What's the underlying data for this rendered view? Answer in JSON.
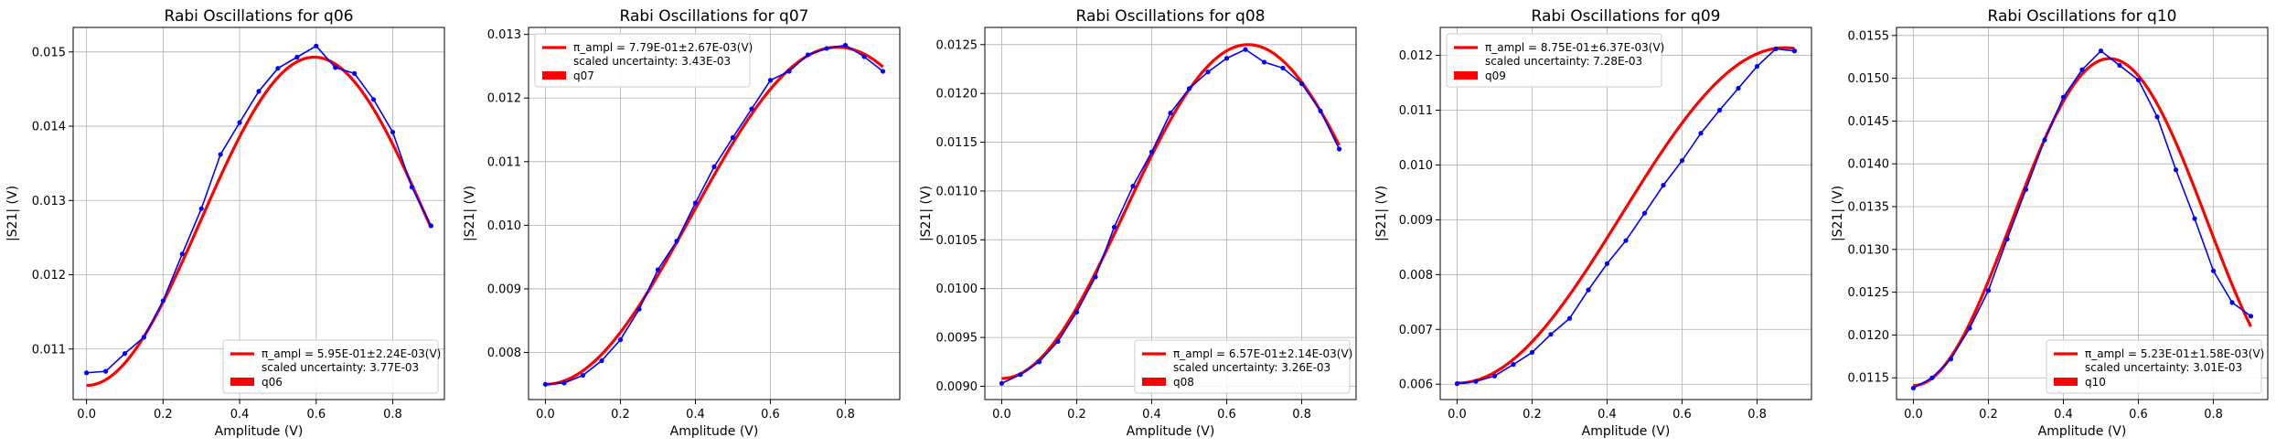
{
  "chart_data": [
    {
      "type": "line",
      "title": "Rabi Oscillations for q06",
      "xlabel": "Amplitude (V)",
      "ylabel": "|S21| (V)",
      "xlim": [
        -0.035,
        0.935
      ],
      "ylim": [
        0.01032,
        0.01533
      ],
      "xticks": [
        "0.0",
        "0.2",
        "0.4",
        "0.6",
        "0.8"
      ],
      "xtick_values": [
        0.0,
        0.2,
        0.4,
        0.6,
        0.8
      ],
      "yticks": [
        "0.011",
        "0.012",
        "0.013",
        "0.014",
        "0.015"
      ],
      "ytick_values": [
        0.011,
        0.012,
        0.013,
        0.014,
        0.015
      ],
      "grid": true,
      "legend_position": "lower-right",
      "legend": {
        "fit_label": "π_ampl = 5.95E-01±2.24E-03(V)",
        "uncertainty_label": "scaled uncertainty: 3.77E-03",
        "data_label": "q06"
      },
      "fit": {
        "center": 0.595,
        "offset": 0.01272,
        "amplitude": 0.00221,
        "period": 1.19
      },
      "series": [
        {
          "name": "q06",
          "color": "#0000ff",
          "x": [
            0.0,
            0.05,
            0.1,
            0.15,
            0.2,
            0.25,
            0.3,
            0.35,
            0.4,
            0.45,
            0.5,
            0.55,
            0.6,
            0.65,
            0.7,
            0.75,
            0.8,
            0.85,
            0.9
          ],
          "y": [
            0.01068,
            0.0107,
            0.01094,
            0.01116,
            0.01165,
            0.01228,
            0.01289,
            0.01362,
            0.01405,
            0.01447,
            0.01478,
            0.01493,
            0.01508,
            0.01479,
            0.01471,
            0.01436,
            0.01392,
            0.01318,
            0.01266
          ]
        }
      ]
    },
    {
      "type": "line",
      "title": "Rabi Oscillations for q07",
      "xlabel": "Amplitude (V)",
      "ylabel": "|S21| (V)",
      "xlim": [
        -0.045,
        0.945
      ],
      "ylim": [
        0.00726,
        0.01311
      ],
      "xticks": [
        "0.0",
        "0.2",
        "0.4",
        "0.6",
        "0.8"
      ],
      "xtick_values": [
        0.0,
        0.2,
        0.4,
        0.6,
        0.8
      ],
      "yticks": [
        "0.008",
        "0.009",
        "0.010",
        "0.011",
        "0.012",
        "0.013"
      ],
      "ytick_values": [
        0.008,
        0.009,
        0.01,
        0.011,
        0.012,
        0.013
      ],
      "grid": true,
      "legend_position": "upper-left",
      "legend": {
        "fit_label": "π_ampl = 7.79E-01±2.67E-03(V)",
        "uncertainty_label": "scaled uncertainty: 3.43E-03",
        "data_label": "q07"
      },
      "fit": {
        "center": 0.779,
        "offset": 0.01015,
        "amplitude": 0.00265,
        "period": 1.558
      },
      "series": [
        {
          "name": "q07",
          "color": "#0000ff",
          "x": [
            0.0,
            0.05,
            0.1,
            0.15,
            0.2,
            0.25,
            0.3,
            0.35,
            0.4,
            0.45,
            0.5,
            0.55,
            0.6,
            0.65,
            0.7,
            0.75,
            0.8,
            0.85,
            0.9
          ],
          "y": [
            0.0075,
            0.00752,
            0.00764,
            0.00787,
            0.0082,
            0.00868,
            0.0093,
            0.00975,
            0.01035,
            0.01092,
            0.01138,
            0.01183,
            0.01228,
            0.01242,
            0.01268,
            0.01278,
            0.01283,
            0.01265,
            0.01242
          ]
        }
      ]
    },
    {
      "type": "line",
      "title": "Rabi Oscillations for q08",
      "xlabel": "Amplitude (V)",
      "ylabel": "|S21| (V)",
      "xlim": [
        -0.045,
        0.945
      ],
      "ylim": [
        0.008864,
        0.012676
      ],
      "xticks": [
        "0.0",
        "0.2",
        "0.4",
        "0.6",
        "0.8"
      ],
      "xtick_values": [
        0.0,
        0.2,
        0.4,
        0.6,
        0.8
      ],
      "yticks": [
        "0.0090",
        "0.0095",
        "0.0100",
        "0.0105",
        "0.0110",
        "0.0115",
        "0.0120",
        "0.0125"
      ],
      "ytick_values": [
        0.009,
        0.0095,
        0.01,
        0.0105,
        0.011,
        0.0115,
        0.012,
        0.0125
      ],
      "grid": true,
      "legend_position": "lower-right",
      "legend": {
        "fit_label": "π_ampl = 6.57E-01±2.14E-03(V)",
        "uncertainty_label": "scaled uncertainty: 3.26E-03",
        "data_label": "q08"
      },
      "fit": {
        "center": 0.657,
        "offset": 0.01079,
        "amplitude": 0.00171,
        "period": 1.314
      },
      "series": [
        {
          "name": "q08",
          "color": "#0000ff",
          "x": [
            0.0,
            0.05,
            0.1,
            0.15,
            0.2,
            0.25,
            0.3,
            0.35,
            0.4,
            0.45,
            0.5,
            0.55,
            0.6,
            0.65,
            0.7,
            0.75,
            0.8,
            0.85,
            0.9
          ],
          "y": [
            0.00903,
            0.00912,
            0.00925,
            0.00946,
            0.00976,
            0.01012,
            0.01063,
            0.01105,
            0.0114,
            0.0118,
            0.01205,
            0.01222,
            0.01236,
            0.01245,
            0.01232,
            0.01226,
            0.0121,
            0.01182,
            0.01143
          ]
        }
      ]
    },
    {
      "type": "line",
      "title": "Rabi Oscillations for q09",
      "xlabel": "Amplitude (V)",
      "ylabel": "|S21| (V)",
      "xlim": [
        -0.045,
        0.945
      ],
      "ylim": [
        0.00572,
        0.01251
      ],
      "xticks": [
        "0.0",
        "0.2",
        "0.4",
        "0.6",
        "0.8"
      ],
      "xtick_values": [
        0.0,
        0.2,
        0.4,
        0.6,
        0.8
      ],
      "yticks": [
        "0.006",
        "0.007",
        "0.008",
        "0.009",
        "0.010",
        "0.011",
        "0.012"
      ],
      "ytick_values": [
        0.006,
        0.007,
        0.008,
        0.009,
        0.01,
        0.011,
        0.012
      ],
      "grid": true,
      "legend_position": "upper-left",
      "legend": {
        "fit_label": "π_ampl = 8.75E-01±6.37E-03(V)",
        "uncertainty_label": "scaled uncertainty: 7.28E-03",
        "data_label": "q09"
      },
      "fit": {
        "center": 0.875,
        "offset": 0.00908,
        "amplitude": 0.00306,
        "period": 1.75
      },
      "series": [
        {
          "name": "q09",
          "color": "#0000ff",
          "x": [
            0.0,
            0.05,
            0.1,
            0.15,
            0.2,
            0.25,
            0.3,
            0.35,
            0.4,
            0.45,
            0.5,
            0.55,
            0.6,
            0.65,
            0.7,
            0.75,
            0.8,
            0.85,
            0.9
          ],
          "y": [
            0.00601,
            0.00605,
            0.00615,
            0.00636,
            0.00658,
            0.00691,
            0.0072,
            0.00772,
            0.0082,
            0.00862,
            0.00912,
            0.00963,
            0.01008,
            0.01058,
            0.011,
            0.0114,
            0.0118,
            0.01212,
            0.01208
          ]
        }
      ]
    },
    {
      "type": "line",
      "title": "Rabi Oscillations for q10",
      "xlabel": "Amplitude (V)",
      "ylabel": "|S21| (V)",
      "xlim": [
        -0.045,
        0.945
      ],
      "ylim": [
        0.011246,
        0.015594
      ],
      "xticks": [
        "0.0",
        "0.2",
        "0.4",
        "0.6",
        "0.8"
      ],
      "xtick_values": [
        0.0,
        0.2,
        0.4,
        0.6,
        0.8
      ],
      "yticks": [
        "0.0115",
        "0.0120",
        "0.0125",
        "0.0130",
        "0.0135",
        "0.0140",
        "0.0145",
        "0.0150",
        "0.0155"
      ],
      "ytick_values": [
        0.0115,
        0.012,
        0.0125,
        0.013,
        0.0135,
        0.014,
        0.0145,
        0.015,
        0.0155
      ],
      "grid": true,
      "legend_position": "lower-right",
      "legend": {
        "fit_label": "π_ampl = 5.23E-01±1.58E-03(V)",
        "uncertainty_label": "scaled uncertainty: 3.01E-03",
        "data_label": "q10"
      },
      "fit": {
        "center": 0.523,
        "offset": 0.01332,
        "amplitude": 0.00191,
        "period": 1.046
      },
      "series": [
        {
          "name": "q10",
          "color": "#0000ff",
          "x": [
            0.0,
            0.05,
            0.1,
            0.15,
            0.2,
            0.25,
            0.3,
            0.35,
            0.4,
            0.45,
            0.5,
            0.55,
            0.6,
            0.65,
            0.7,
            0.75,
            0.8,
            0.85,
            0.9
          ],
          "y": [
            0.01138,
            0.0115,
            0.01172,
            0.01208,
            0.01252,
            0.01312,
            0.0137,
            0.01428,
            0.01478,
            0.0151,
            0.01532,
            0.01515,
            0.01498,
            0.01455,
            0.01393,
            0.01336,
            0.01275,
            0.01238,
            0.01222
          ]
        }
      ]
    }
  ]
}
